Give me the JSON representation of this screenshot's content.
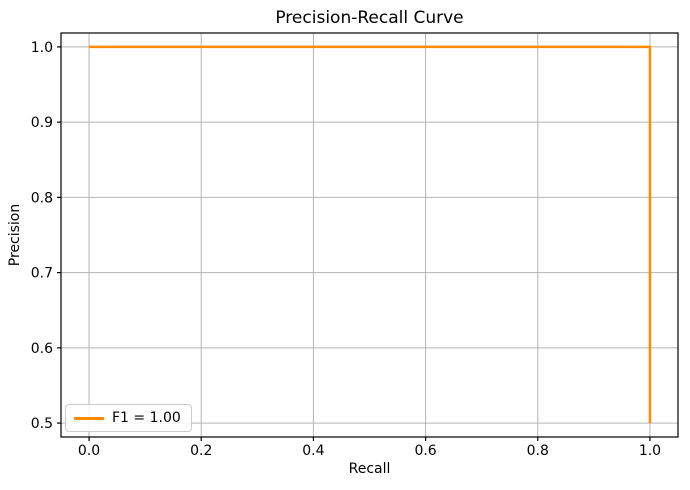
{
  "figure": {
    "background": "#ffffff",
    "axis_color": "#000000",
    "grid_color": "#b4b4b4",
    "tick_label_color": "#000000"
  },
  "chart_data": {
    "type": "line",
    "title": "Precision-Recall Curve",
    "xlabel": "Recall",
    "ylabel": "Precision",
    "xlim": [
      -0.05,
      1.05
    ],
    "ylim": [
      0.4815,
      1.0185
    ],
    "x_ticks": [
      0.0,
      0.2,
      0.4,
      0.6,
      0.8,
      1.0
    ],
    "x_tick_labels": [
      "0.0",
      "0.2",
      "0.4",
      "0.6",
      "0.8",
      "1.0"
    ],
    "y_ticks": [
      0.5,
      0.6,
      0.7,
      0.8,
      0.9,
      1.0
    ],
    "y_tick_labels": [
      "0.5",
      "0.6",
      "0.7",
      "0.8",
      "0.9",
      "1.0"
    ],
    "grid": true,
    "legend": {
      "position": "lower left",
      "entries": [
        {
          "label": "F1 = 1.00",
          "color": "#ff8c00"
        }
      ]
    },
    "series": [
      {
        "name": "F1 = 1.00",
        "color": "#ff8c00",
        "line_width": 2.5,
        "x": [
          0.0,
          1.0,
          1.0
        ],
        "y": [
          1.0,
          1.0,
          0.5
        ]
      }
    ]
  }
}
